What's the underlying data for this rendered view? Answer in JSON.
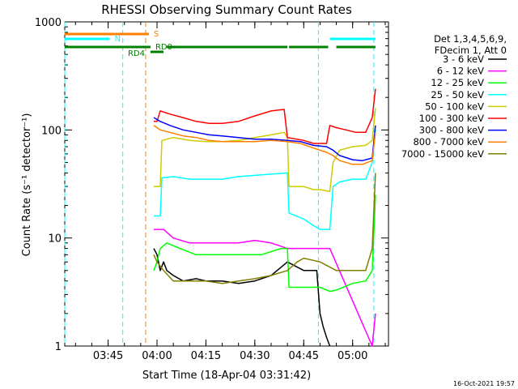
{
  "chart_data": {
    "type": "line",
    "title": "RHESSI Observing Summary Count Rates",
    "xlabel": "Start Time (18-Apr-04 03:31:42)",
    "ylabel": "Count Rate (s⁻¹ detector⁻¹)",
    "y_scale": "log",
    "ylim": [
      1,
      1000
    ],
    "xlim": [
      "03:31:42",
      "05:11:00"
    ],
    "y_ticks": [
      "1",
      "10",
      "100",
      "1000"
    ],
    "x_ticks": [
      "03:45",
      "04:00",
      "04:15",
      "04:30",
      "04:45",
      "05:00"
    ],
    "legend_position": "right",
    "legend_header": [
      "Det 1,3,4,5,6,9,",
      "FDecim 1, Att 0"
    ],
    "timestamp": "16-Oct-2021 19:57",
    "series": [
      {
        "name": "3 - 6 keV",
        "color": "#000000",
        "points": [
          [
            "03:59:00",
            8
          ],
          [
            "04:00:00",
            7
          ],
          [
            "04:01:00",
            5
          ],
          [
            "04:02:00",
            6
          ],
          [
            "04:03:00",
            5
          ],
          [
            "04:05:00",
            4.5
          ],
          [
            "04:08:00",
            4
          ],
          [
            "04:12:00",
            4.2
          ],
          [
            "04:15:00",
            4
          ],
          [
            "04:20:00",
            4
          ],
          [
            "04:25:00",
            3.8
          ],
          [
            "04:30:00",
            4
          ],
          [
            "04:35:00",
            4.5
          ],
          [
            "04:40:00",
            6
          ],
          [
            "04:45:00",
            5
          ],
          [
            "04:49:00",
            5
          ],
          [
            "04:50:00",
            2
          ],
          [
            "04:51:00",
            1.5
          ],
          [
            "04:52:00",
            1.2
          ],
          [
            "04:53:00",
            1
          ]
        ]
      },
      {
        "name": "6 - 12 keV",
        "color": "#ff00ff",
        "points": [
          [
            "03:59:00",
            12
          ],
          [
            "04:02:00",
            12
          ],
          [
            "04:05:00",
            10
          ],
          [
            "04:10:00",
            9
          ],
          [
            "04:15:00",
            9
          ],
          [
            "04:20:00",
            9
          ],
          [
            "04:25:00",
            9
          ],
          [
            "04:30:00",
            9.5
          ],
          [
            "04:35:00",
            9
          ],
          [
            "04:40:00",
            8
          ],
          [
            "04:45:00",
            8
          ],
          [
            "04:50:00",
            8
          ],
          [
            "04:52:00",
            8
          ],
          [
            "04:53:00",
            8
          ],
          [
            "05:06:00",
            1
          ],
          [
            "05:07:00",
            2
          ]
        ]
      },
      {
        "name": "12 - 25 keV",
        "color": "#00ff00",
        "points": [
          [
            "03:59:00",
            5
          ],
          [
            "04:00:00",
            6
          ],
          [
            "04:01:00",
            8
          ],
          [
            "04:03:00",
            9
          ],
          [
            "04:07:00",
            8
          ],
          [
            "04:12:00",
            7
          ],
          [
            "04:18:00",
            7
          ],
          [
            "04:25:00",
            7
          ],
          [
            "04:32:00",
            7
          ],
          [
            "04:38:00",
            8
          ],
          [
            "04:40:00",
            8
          ],
          [
            "04:40:30",
            3.5
          ],
          [
            "04:45:00",
            3.5
          ],
          [
            "04:50:00",
            3.5
          ],
          [
            "04:53:00",
            3.2
          ],
          [
            "04:55:00",
            3.3
          ],
          [
            "05:00:00",
            3.8
          ],
          [
            "05:04:00",
            4
          ],
          [
            "05:06:00",
            5
          ],
          [
            "05:07:00",
            25
          ]
        ]
      },
      {
        "name": "25 - 50 keV",
        "color": "#00ffff",
        "points": [
          [
            "03:59:00",
            16
          ],
          [
            "04:01:00",
            16
          ],
          [
            "04:01:30",
            36
          ],
          [
            "04:05:00",
            37
          ],
          [
            "04:10:00",
            35
          ],
          [
            "04:15:00",
            35
          ],
          [
            "04:20:00",
            35
          ],
          [
            "04:25:00",
            37
          ],
          [
            "04:30:00",
            38
          ],
          [
            "04:35:00",
            39
          ],
          [
            "04:40:00",
            40
          ],
          [
            "04:40:30",
            17
          ],
          [
            "04:45:00",
            15
          ],
          [
            "04:48:00",
            13
          ],
          [
            "04:50:00",
            12
          ],
          [
            "04:53:00",
            12
          ],
          [
            "04:54:00",
            30
          ],
          [
            "04:56:00",
            33
          ],
          [
            "05:00:00",
            35
          ],
          [
            "05:04:00",
            35
          ],
          [
            "05:06:00",
            50
          ],
          [
            "05:07:00",
            100
          ]
        ]
      },
      {
        "name": "50 - 100 keV",
        "color": "#cccc00",
        "points": [
          [
            "03:59:00",
            30
          ],
          [
            "04:01:00",
            30
          ],
          [
            "04:01:30",
            80
          ],
          [
            "04:05:00",
            85
          ],
          [
            "04:10:00",
            80
          ],
          [
            "04:15:00",
            78
          ],
          [
            "04:20:00",
            78
          ],
          [
            "04:25:00",
            80
          ],
          [
            "04:30:00",
            85
          ],
          [
            "04:35:00",
            90
          ],
          [
            "04:39:00",
            95
          ],
          [
            "04:40:00",
            85
          ],
          [
            "04:40:30",
            30
          ],
          [
            "04:45:00",
            30
          ],
          [
            "04:48:00",
            28
          ],
          [
            "04:50:00",
            28
          ],
          [
            "04:53:00",
            27
          ],
          [
            "04:54:00",
            50
          ],
          [
            "04:56:00",
            65
          ],
          [
            "05:00:00",
            70
          ],
          [
            "05:04:00",
            72
          ],
          [
            "05:06:00",
            80
          ],
          [
            "05:07:00",
            160
          ]
        ]
      },
      {
        "name": "100 - 300 keV",
        "color": "#ff0000",
        "points": [
          [
            "03:59:00",
            120
          ],
          [
            "04:00:00",
            120
          ],
          [
            "04:01:00",
            150
          ],
          [
            "04:04:00",
            140
          ],
          [
            "04:08:00",
            130
          ],
          [
            "04:12:00",
            120
          ],
          [
            "04:16:00",
            115
          ],
          [
            "04:20:00",
            115
          ],
          [
            "04:25:00",
            120
          ],
          [
            "04:30:00",
            135
          ],
          [
            "04:35:00",
            150
          ],
          [
            "04:39:00",
            155
          ],
          [
            "04:40:00",
            85
          ],
          [
            "04:45:00",
            80
          ],
          [
            "04:48:00",
            75
          ],
          [
            "04:52:00",
            75
          ],
          [
            "04:53:00",
            110
          ],
          [
            "04:55:00",
            105
          ],
          [
            "04:58:00",
            100
          ],
          [
            "05:01:00",
            95
          ],
          [
            "05:04:00",
            95
          ],
          [
            "05:06:00",
            130
          ],
          [
            "05:07:00",
            240
          ]
        ]
      },
      {
        "name": "300 - 800 keV",
        "color": "#0000ff",
        "points": [
          [
            "03:59:00",
            130
          ],
          [
            "04:01:00",
            120
          ],
          [
            "04:04:00",
            110
          ],
          [
            "04:08:00",
            100
          ],
          [
            "04:12:00",
            95
          ],
          [
            "04:16:00",
            90
          ],
          [
            "04:20:00",
            88
          ],
          [
            "04:25:00",
            85
          ],
          [
            "04:30:00",
            82
          ],
          [
            "04:35:00",
            82
          ],
          [
            "04:40:00",
            80
          ],
          [
            "04:44:00",
            78
          ],
          [
            "04:48:00",
            72
          ],
          [
            "04:52:00",
            70
          ],
          [
            "04:54:00",
            65
          ],
          [
            "04:56:00",
            58
          ],
          [
            "05:00:00",
            53
          ],
          [
            "05:03:00",
            52
          ],
          [
            "05:06:00",
            55
          ],
          [
            "05:07:00",
            110
          ]
        ]
      },
      {
        "name": "800 - 7000 keV",
        "color": "#ff8000",
        "points": [
          [
            "03:59:00",
            110
          ],
          [
            "04:01:00",
            100
          ],
          [
            "04:04:00",
            95
          ],
          [
            "04:08:00",
            88
          ],
          [
            "04:12:00",
            85
          ],
          [
            "04:16:00",
            80
          ],
          [
            "04:20:00",
            78
          ],
          [
            "04:25:00",
            78
          ],
          [
            "04:30:00",
            78
          ],
          [
            "04:35:00",
            80
          ],
          [
            "04:40:00",
            78
          ],
          [
            "04:44:00",
            75
          ],
          [
            "04:48:00",
            68
          ],
          [
            "04:52:00",
            62
          ],
          [
            "04:54:00",
            58
          ],
          [
            "04:56:00",
            52
          ],
          [
            "05:00:00",
            48
          ],
          [
            "05:03:00",
            48
          ],
          [
            "05:06:00",
            52
          ],
          [
            "05:07:00",
            95
          ]
        ]
      },
      {
        "name": "7000 - 15000 keV",
        "color": "#808000",
        "points": [
          [
            "03:59:00",
            7
          ],
          [
            "04:00:00",
            6
          ],
          [
            "04:02:00",
            5
          ],
          [
            "04:05:00",
            4
          ],
          [
            "04:10:00",
            4
          ],
          [
            "04:15:00",
            4
          ],
          [
            "04:20:00",
            3.8
          ],
          [
            "04:25:00",
            4
          ],
          [
            "04:30:00",
            4.2
          ],
          [
            "04:35:00",
            4.5
          ],
          [
            "04:40:00",
            5
          ],
          [
            "04:43:00",
            6
          ],
          [
            "04:45:00",
            6.5
          ],
          [
            "04:50:00",
            6
          ],
          [
            "04:55:00",
            5
          ],
          [
            "05:00:00",
            5
          ],
          [
            "05:04:00",
            5
          ],
          [
            "05:06:00",
            8
          ],
          [
            "05:07:00",
            40
          ]
        ]
      }
    ],
    "flag_bars": [
      {
        "label": "S",
        "color": "#ff8000",
        "row": 1,
        "segments": [
          [
            "03:31:42",
            "03:57:30"
          ]
        ]
      },
      {
        "label": "N",
        "color": "#00ffff",
        "row": 2,
        "segments": [
          [
            "03:31:42",
            "03:45:30"
          ],
          [
            "04:53:00",
            "05:07:00"
          ]
        ]
      },
      {
        "label": "RD0",
        "color": "#008000",
        "row": 3,
        "segments": [
          [
            "03:31:42",
            "03:58:00"
          ],
          [
            "04:03:00",
            "04:40:00"
          ],
          [
            "04:40:30",
            "04:52:30"
          ],
          [
            "04:55:00",
            "05:07:00"
          ]
        ]
      },
      {
        "label": "RD4",
        "color": "#008000",
        "row": 4,
        "segments": [
          [
            "03:58:00",
            "04:02:00"
          ]
        ]
      }
    ],
    "vertical_markers": [
      {
        "time": "03:31:42",
        "color": "#00ffff"
      },
      {
        "time": "03:49:30",
        "color": "#00ffff"
      },
      {
        "time": "03:56:30",
        "color": "#ff8000"
      },
      {
        "time": "04:49:30",
        "color": "#00ffff"
      },
      {
        "time": "05:06:30",
        "color": "#00ffff"
      }
    ]
  }
}
